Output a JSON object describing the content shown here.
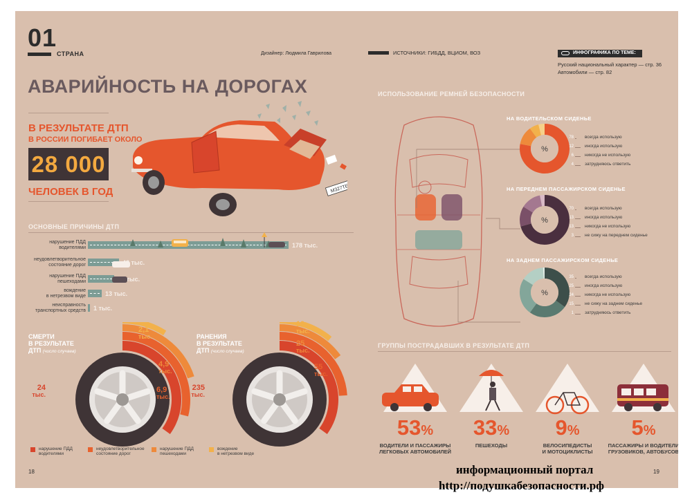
{
  "header": {
    "number": "01",
    "section": "СТРАНА",
    "designer": "Дизайнер: Людмила Гаврилова",
    "sources": "ИСТОЧНИКИ: ГИБДД, ВЦИОМ, ВОЗ",
    "related_label": "ИНФОГРАФИКА ПО ТЕМЕ:",
    "related_1": "Русский национальный характер — стр. 36",
    "related_2": "Автомобили — стр. 82"
  },
  "title": "АВАРИЙНОСТЬ НА ДОРОГАХ",
  "headline": {
    "line1": "В РЕЗУЛЬТАТЕ ДТП",
    "line2": "В РОССИИ ПОГИБАЕТ ОКОЛО",
    "number": "28 000",
    "line3": "ЧЕЛОВЕК В ГОД"
  },
  "car_plate": "М327ТЕ",
  "causes": {
    "title": "ОСНОВНЫЕ ПРИЧИНЫ ДТП",
    "items": [
      {
        "label_1": "нарушение ПДД",
        "label_2": "водителями",
        "value": "178 тыс."
      },
      {
        "label_1": "неудовлетворительное",
        "label_2": "состояние дорог",
        "value": "43 тыс."
      },
      {
        "label_1": "нарушение ПДД",
        "label_2": "пешеходами",
        "value": "29 тыс."
      },
      {
        "label_1": "вождение",
        "label_2": "в нетрезвом виде",
        "value": "13 тыс."
      },
      {
        "label_1": "неисправность",
        "label_2": "транспортных средств",
        "value": "1 тыс."
      }
    ]
  },
  "deaths": {
    "title_1": "СМЕРТИ",
    "title_2": "В РЕЗУЛЬТАТЕ",
    "title_3": "ДТП",
    "note": "(число случаев)",
    "v_drivers": "24",
    "v_roads": "6,9",
    "v_pedestrians": "4,9",
    "v_drunk": "2,1",
    "unit": "тыс."
  },
  "injuries": {
    "title_1": "РАНЕНИЯ",
    "title_2": "В РЕЗУЛЬТАТЕ",
    "title_3": "ДТП",
    "note": "(число случаев)",
    "v_drivers": "235",
    "v_roads": "55",
    "v_pedestrians": "25",
    "v_drunk": "19",
    "unit": "тыс."
  },
  "legend": [
    {
      "label_1": "нарушение ПДД",
      "label_2": "водителями",
      "color": "#d8452c"
    },
    {
      "label_1": "неудовлетворительное",
      "label_2": "состояние дорог",
      "color": "#e8622e"
    },
    {
      "label_1": "нарушение ПДД",
      "label_2": "пешеходами",
      "color": "#ee8a3b"
    },
    {
      "label_1": "вождение",
      "label_2": "в нетрезвом виде",
      "color": "#f2b14b"
    }
  ],
  "belts": {
    "title": "ИСПОЛЬЗОВАНИЕ РЕМНЕЙ БЕЗОПАСНОСТИ",
    "driver": {
      "title": "НА ВОДИТЕЛЬСКОМ СИДЕНЬЕ",
      "labels": [
        "всегда использую",
        "иногда использую",
        "никогда не использую",
        "затрудняюсь ответить"
      ],
      "values": [
        78,
        12,
        6,
        4
      ],
      "display": [
        "78",
        "12",
        "6",
        "4"
      ],
      "colors": [
        "#e5562d",
        "#ee8a3b",
        "#f2b14b",
        "#f6d08a"
      ]
    },
    "front": {
      "title": "НА ПЕРЕДНЕМ ПАССАЖИРСКОМ СИДЕНЬЕ",
      "labels": [
        "всегда использую",
        "иногда использую",
        "никогда не использую",
        "не сижу на переднем сиденье"
      ],
      "values": [
        70,
        13,
        13,
        3
      ],
      "display": [
        "70",
        "13",
        "13",
        "3"
      ],
      "colors": [
        "#4a2f3f",
        "#7a5068",
        "#a47890",
        "#d8b9c6"
      ]
    },
    "rear": {
      "title": "НА ЗАДНЕМ ПАССАЖИРСКОМ СИДЕНЬЕ",
      "labels": [
        "всегда использую",
        "иногда использую",
        "никогда не использую",
        "не сижу на заднем сиденье",
        "затрудняюсь ответить"
      ],
      "values": [
        35,
        25,
        24,
        15,
        1
      ],
      "display": [
        "35",
        "25",
        "24",
        "15",
        "1"
      ],
      "colors": [
        "#3d4f4a",
        "#5a7a70",
        "#83a69a",
        "#b4cfc4",
        "#e2eee8"
      ]
    },
    "pct_symbol": "%"
  },
  "groups": {
    "title": "ГРУППЫ ПОСТРАДАВШИХ  В РЕЗУЛЬТАТЕ ДТП",
    "items": [
      {
        "value": "53",
        "line1": "ВОДИТЕЛИ И ПАССАЖИРЫ",
        "line2": "ЛЕГКОВЫХ АВТОМОБИЛЕЙ"
      },
      {
        "value": "33",
        "line1": "ПЕШЕХОДЫ",
        "line2": ""
      },
      {
        "value": "9",
        "line1": "ВЕЛОСИПЕДИСТЫ",
        "line2": "И МОТОЦИКЛИСТЫ"
      },
      {
        "value": "5",
        "line1": "ПАССАЖИРЫ И ВОДИТЕЛИ",
        "line2": "ГРУЗОВИКОВ, АВТОБУСОВ"
      }
    ],
    "pct": "%"
  },
  "pages": {
    "left": "18",
    "right": "19"
  },
  "watermark": {
    "line1": "информационный портал",
    "line2": "http://подушкабезопасности.рф"
  },
  "colors": {
    "background": "#d9bfad",
    "orange": "#e5562d",
    "dark": "#3f3436",
    "road": "#7c9c95",
    "accent": "#f3a940"
  }
}
